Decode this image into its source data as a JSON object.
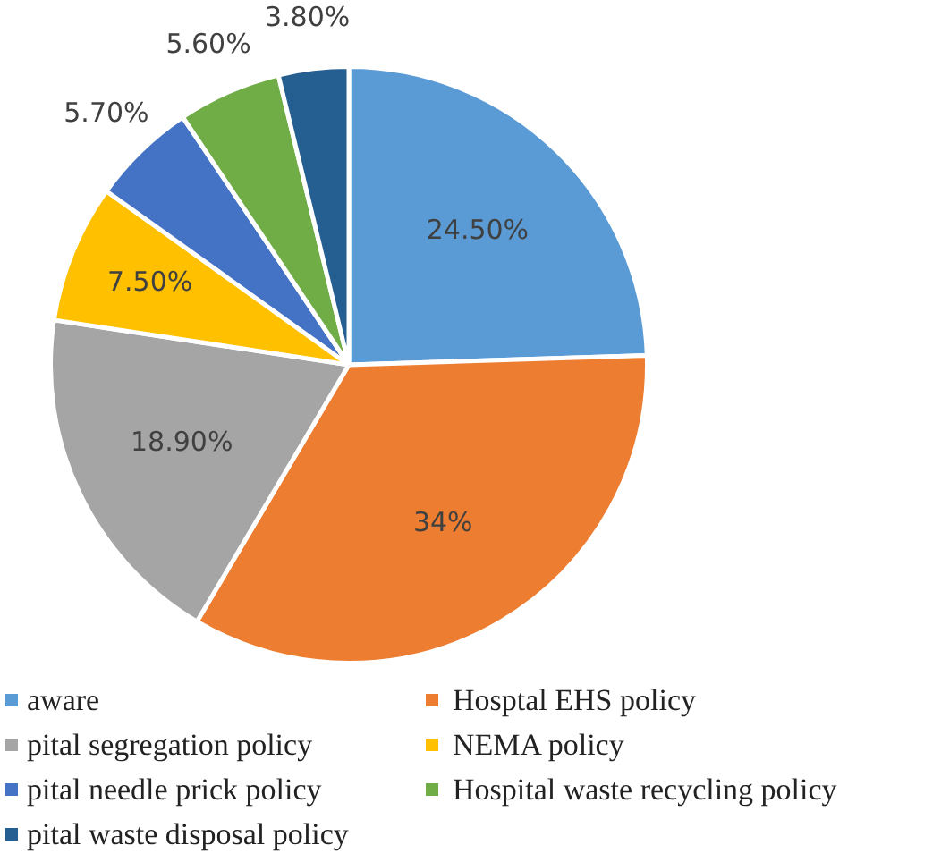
{
  "chart_data": {
    "type": "pie",
    "categories": [
      "aware",
      "Hosptal EHS policy",
      "pital segregation policy",
      "NEMA policy",
      "pital needle prick policy",
      "Hospital waste recycling policy",
      "pital waste disposal policy"
    ],
    "values": [
      24.5,
      34,
      18.9,
      7.5,
      5.7,
      5.6,
      3.8
    ],
    "colors": [
      "#5b9bd5",
      "#ed7d31",
      "#a5a5a5",
      "#ffc000",
      "#4472c4",
      "#70ad47",
      "#255e91"
    ],
    "value_labels": [
      "24.50%",
      "34%",
      "18.90%",
      "7.50%",
      "5.70%",
      "5.60%",
      "3.80%"
    ],
    "legend": "bottom"
  }
}
